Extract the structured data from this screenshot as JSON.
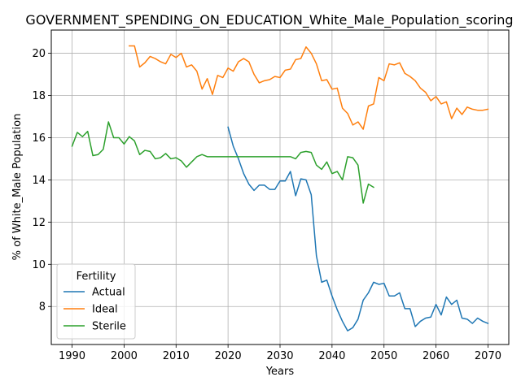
{
  "chart_data": {
    "type": "line",
    "title": "GOVERNMENT_SPENDING_ON_EDUCATION_White_Male_Population_scoring",
    "xlabel": "Years",
    "ylabel": "% of White_Male Population",
    "xlim": [
      1986,
      2074
    ],
    "ylim": [
      6.2,
      21.1
    ],
    "xticks": [
      1990,
      2000,
      2010,
      2020,
      2030,
      2040,
      2050,
      2060,
      2070
    ],
    "yticks": [
      8,
      10,
      12,
      14,
      16,
      18,
      20
    ],
    "grid": true,
    "legend": {
      "title": "Fertility",
      "placement": "lower-left"
    },
    "series": [
      {
        "name": "Actual",
        "color": "#1f77b4",
        "x": [
          2020,
          2021,
          2022,
          2023,
          2024,
          2025,
          2026,
          2027,
          2028,
          2029,
          2030,
          2031,
          2032,
          2033,
          2034,
          2035,
          2036,
          2037,
          2038,
          2039,
          2040,
          2041,
          2042,
          2043,
          2044,
          2045,
          2046,
          2047,
          2048,
          2049,
          2050,
          2051,
          2052,
          2053,
          2054,
          2055,
          2056,
          2057,
          2058,
          2059,
          2060,
          2061,
          2062,
          2063,
          2064,
          2065,
          2066,
          2067,
          2068,
          2069,
          2070
        ],
        "y": [
          16.5,
          15.6,
          15.0,
          14.3,
          13.8,
          13.5,
          13.75,
          13.75,
          13.55,
          13.55,
          13.95,
          13.95,
          14.4,
          13.25,
          14.05,
          14.0,
          13.3,
          10.4,
          9.15,
          9.25,
          8.5,
          7.85,
          7.3,
          6.85,
          7.0,
          7.4,
          8.3,
          8.65,
          9.15,
          9.05,
          9.1,
          8.5,
          8.5,
          8.65,
          7.9,
          7.9,
          7.05,
          7.3,
          7.45,
          7.5,
          8.1,
          7.6,
          8.45,
          8.1,
          8.3,
          7.45,
          7.4,
          7.2,
          7.45,
          7.3,
          7.2
        ]
      },
      {
        "name": "Ideal",
        "color": "#ff7f0e",
        "x": [
          2001,
          2002,
          2003,
          2004,
          2005,
          2006,
          2007,
          2008,
          2009,
          2010,
          2011,
          2012,
          2013,
          2014,
          2015,
          2016,
          2017,
          2018,
          2019,
          2020,
          2021,
          2022,
          2023,
          2024,
          2025,
          2026,
          2027,
          2028,
          2029,
          2030,
          2031,
          2032,
          2033,
          2034,
          2035,
          2036,
          2037,
          2038,
          2039,
          2040,
          2041,
          2042,
          2043,
          2044,
          2045,
          2046,
          2047,
          2048,
          2049,
          2050,
          2051,
          2052,
          2053,
          2054,
          2055,
          2056,
          2057,
          2058,
          2059,
          2060,
          2061,
          2062,
          2063,
          2064,
          2065,
          2066,
          2067,
          2068,
          2069,
          2070
        ],
        "y": [
          20.35,
          20.35,
          19.35,
          19.55,
          19.85,
          19.75,
          19.6,
          19.5,
          19.95,
          19.8,
          20.0,
          19.35,
          19.45,
          19.15,
          18.3,
          18.8,
          18.05,
          18.95,
          18.85,
          19.3,
          19.15,
          19.6,
          19.75,
          19.6,
          19.0,
          18.6,
          18.7,
          18.75,
          18.9,
          18.85,
          19.2,
          19.25,
          19.7,
          19.75,
          20.3,
          20.0,
          19.5,
          18.7,
          18.75,
          18.3,
          18.35,
          17.4,
          17.15,
          16.6,
          16.75,
          16.4,
          17.5,
          17.6,
          18.85,
          18.7,
          19.5,
          19.45,
          19.55,
          19.05,
          18.9,
          18.7,
          18.35,
          18.15,
          17.75,
          17.95,
          17.6,
          17.7,
          16.9,
          17.4,
          17.1,
          17.45,
          17.35,
          17.3,
          17.3,
          17.35
        ]
      },
      {
        "name": "Sterile",
        "color": "#2ca02c",
        "x": [
          1990,
          1991,
          1992,
          1993,
          1994,
          1995,
          1996,
          1997,
          1998,
          1999,
          2000,
          2001,
          2002,
          2003,
          2004,
          2005,
          2006,
          2007,
          2008,
          2009,
          2010,
          2011,
          2012,
          2013,
          2014,
          2015,
          2016,
          2017,
          2018,
          2019,
          2020,
          2021,
          2022,
          2023,
          2024,
          2025,
          2026,
          2027,
          2028,
          2029,
          2030,
          2031,
          2032,
          2033,
          2034,
          2035,
          2036,
          2037,
          2038,
          2039,
          2040,
          2041,
          2042,
          2043,
          2044,
          2045,
          2046,
          2047,
          2048
        ],
        "y": [
          15.6,
          16.25,
          16.05,
          16.3,
          15.15,
          15.2,
          15.45,
          16.75,
          16.0,
          16.0,
          15.7,
          16.05,
          15.85,
          15.2,
          15.4,
          15.35,
          15.0,
          15.05,
          15.25,
          15.0,
          15.05,
          14.9,
          14.6,
          14.85,
          15.1,
          15.2,
          15.1,
          15.1,
          15.1,
          15.1,
          15.1,
          15.1,
          15.1,
          15.1,
          15.1,
          15.1,
          15.1,
          15.1,
          15.1,
          15.1,
          15.1,
          15.1,
          15.1,
          15.0,
          15.3,
          15.35,
          15.3,
          14.7,
          14.5,
          14.85,
          14.3,
          14.4,
          14.0,
          15.1,
          15.05,
          14.7,
          12.9,
          13.8,
          13.65
        ]
      }
    ]
  }
}
